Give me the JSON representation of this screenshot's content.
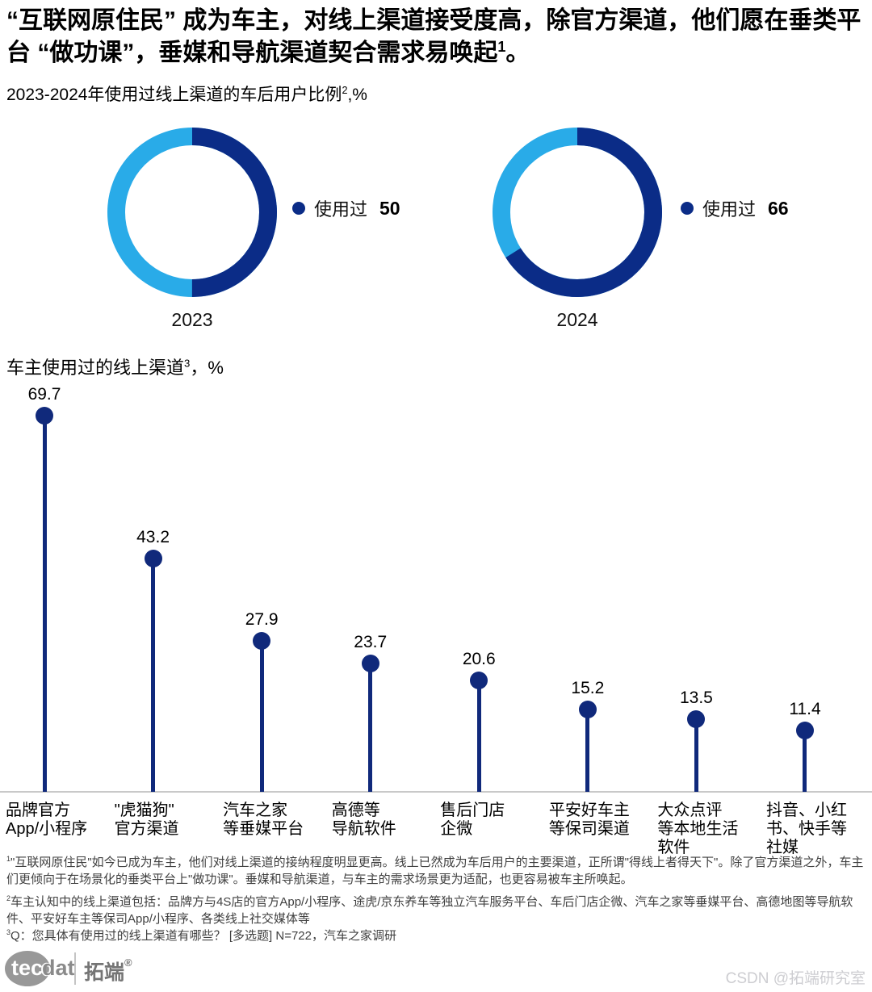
{
  "page": {
    "title": {
      "pre": "“互联网原住民” 成为车主，对线上渠道接受度高，除官方渠道，他们愿在垂类平台 “做功课”，垂媒和导航渠道契合需求易唤起",
      "sup": "1",
      "tail": "。"
    },
    "watermark": "CSDN @拓端研究室",
    "logo": {
      "tec": "tec",
      "dat": "dat",
      "cn": "拓端",
      "reg": "®"
    }
  },
  "chart_data": [
    {
      "type": "pie",
      "variant": "donut-pair",
      "title": "2023-2024年使用过线上渠道的车后用户比例",
      "title_sup": "2",
      "title_unit": ",%",
      "legend_position": "right",
      "colors": {
        "used": "#0b2c87",
        "unused": "#29abe8"
      },
      "donuts": [
        {
          "label": "2023",
          "legend": "使用过",
          "value": 50,
          "remainder": 50
        },
        {
          "label": "2024",
          "legend": "使用过",
          "value": 66,
          "remainder": 34
        }
      ]
    },
    {
      "type": "bar",
      "variant": "lollipop",
      "title": "车主使用过的线上渠道",
      "title_sup": "3",
      "title_unit": "，%",
      "color": "#10297b",
      "ylim": [
        0,
        73
      ],
      "grid": false,
      "values": [
        69.7,
        43.2,
        27.9,
        23.7,
        20.6,
        15.2,
        13.5,
        11.4
      ],
      "categories": [
        {
          "name": "品牌官方App/小程序",
          "lines": [
            "品牌官方",
            "App/小程序"
          ]
        },
        {
          "name": "\"虎猫狗\"官方渠道",
          "lines": [
            "\"虎猫狗\"",
            "官方渠道"
          ]
        },
        {
          "name": "汽车之家等垂媒平台",
          "lines": [
            "汽车之家",
            "等垂媒平台"
          ]
        },
        {
          "name": "高德等导航软件",
          "lines": [
            "高德等",
            "导航软件"
          ]
        },
        {
          "name": "售后门店企微",
          "lines": [
            "售后门店",
            "企微"
          ]
        },
        {
          "name": "平安好车主等保司渠道",
          "lines": [
            "平安好车主",
            "等保司渠道"
          ]
        },
        {
          "name": "大众点评等本地生活软件",
          "lines": [
            "大众点评",
            "等本地生活",
            "软件"
          ]
        },
        {
          "name": "抖音、小红书、快手等社媒",
          "lines": [
            "抖音、小红",
            "书、快手等",
            "社媒"
          ]
        }
      ]
    }
  ],
  "footnotes": [
    {
      "sup": "1",
      "text": "\"互联网原住民\"如今已成为车主，他们对线上渠道的接纳程度明显更高。线上已然成为车后用户的主要渠道，正所谓\"得线上者得天下\"。除了官方渠道之外，车主们更倾向于在场景化的垂类平台上\"做功课\"。垂媒和导航渠道，与车主的需求场景更为适配，也更容易被车主所唤起。"
    },
    {
      "sup": "2",
      "text": "车主认知中的线上渠道包括：品牌方与4S店的官方App/小程序、途虎/京东养车等独立汽车服务平台、车后门店企微、汽车之家等垂媒平台、高德地图等导航软件、平安好车主等保司App/小程序、各类线上社交媒体等"
    },
    {
      "sup": "3",
      "text": "Q：您具体有使用过的线上渠道有哪些？ [多选题] N=722，汽车之家调研"
    }
  ]
}
